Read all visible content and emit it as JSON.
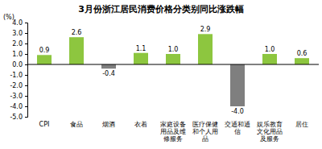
{
  "chart_data": {
    "type": "bar",
    "title": "3月份浙江居民消费价格分类别同比涨跌幅",
    "y_label": "(%)",
    "categories": [
      "CPI",
      "食品",
      "烟酒",
      "衣着",
      "家庭设备用品及维修服务",
      "医疗保健和个人用品",
      "交通和通信",
      "娱乐教育文化用品及服务",
      "居住"
    ],
    "values": [
      0.9,
      2.6,
      -0.4,
      1.1,
      1.0,
      2.9,
      -4.0,
      1.0,
      0.6
    ],
    "value_labels": [
      "0.9",
      "2.6",
      "-0.4",
      "1.1",
      "1.0",
      "2.9",
      "-4.0",
      "1.0",
      "0.6"
    ],
    "colors": [
      "#8dc63f",
      "#8dc63f",
      "#7f7f7f",
      "#8dc63f",
      "#8dc63f",
      "#8dc63f",
      "#7f7f7f",
      "#8dc63f",
      "#8dc63f"
    ],
    "ylim": [
      -5,
      4
    ],
    "yticks": [
      {
        "value": 4,
        "label": "4.0"
      },
      {
        "value": 3,
        "label": "3.0"
      },
      {
        "value": 2,
        "label": "2.0"
      },
      {
        "value": 1,
        "label": "1.0"
      },
      {
        "value": 0,
        "label": "0.0"
      },
      {
        "value": -1,
        "label": "-1.0"
      },
      {
        "value": -2,
        "label": "-2.0"
      },
      {
        "value": -3,
        "label": "-3.0"
      },
      {
        "value": -4,
        "label": "-4.0"
      },
      {
        "value": -5,
        "label": "-5.0"
      }
    ],
    "grid": false,
    "data_labels": true
  }
}
